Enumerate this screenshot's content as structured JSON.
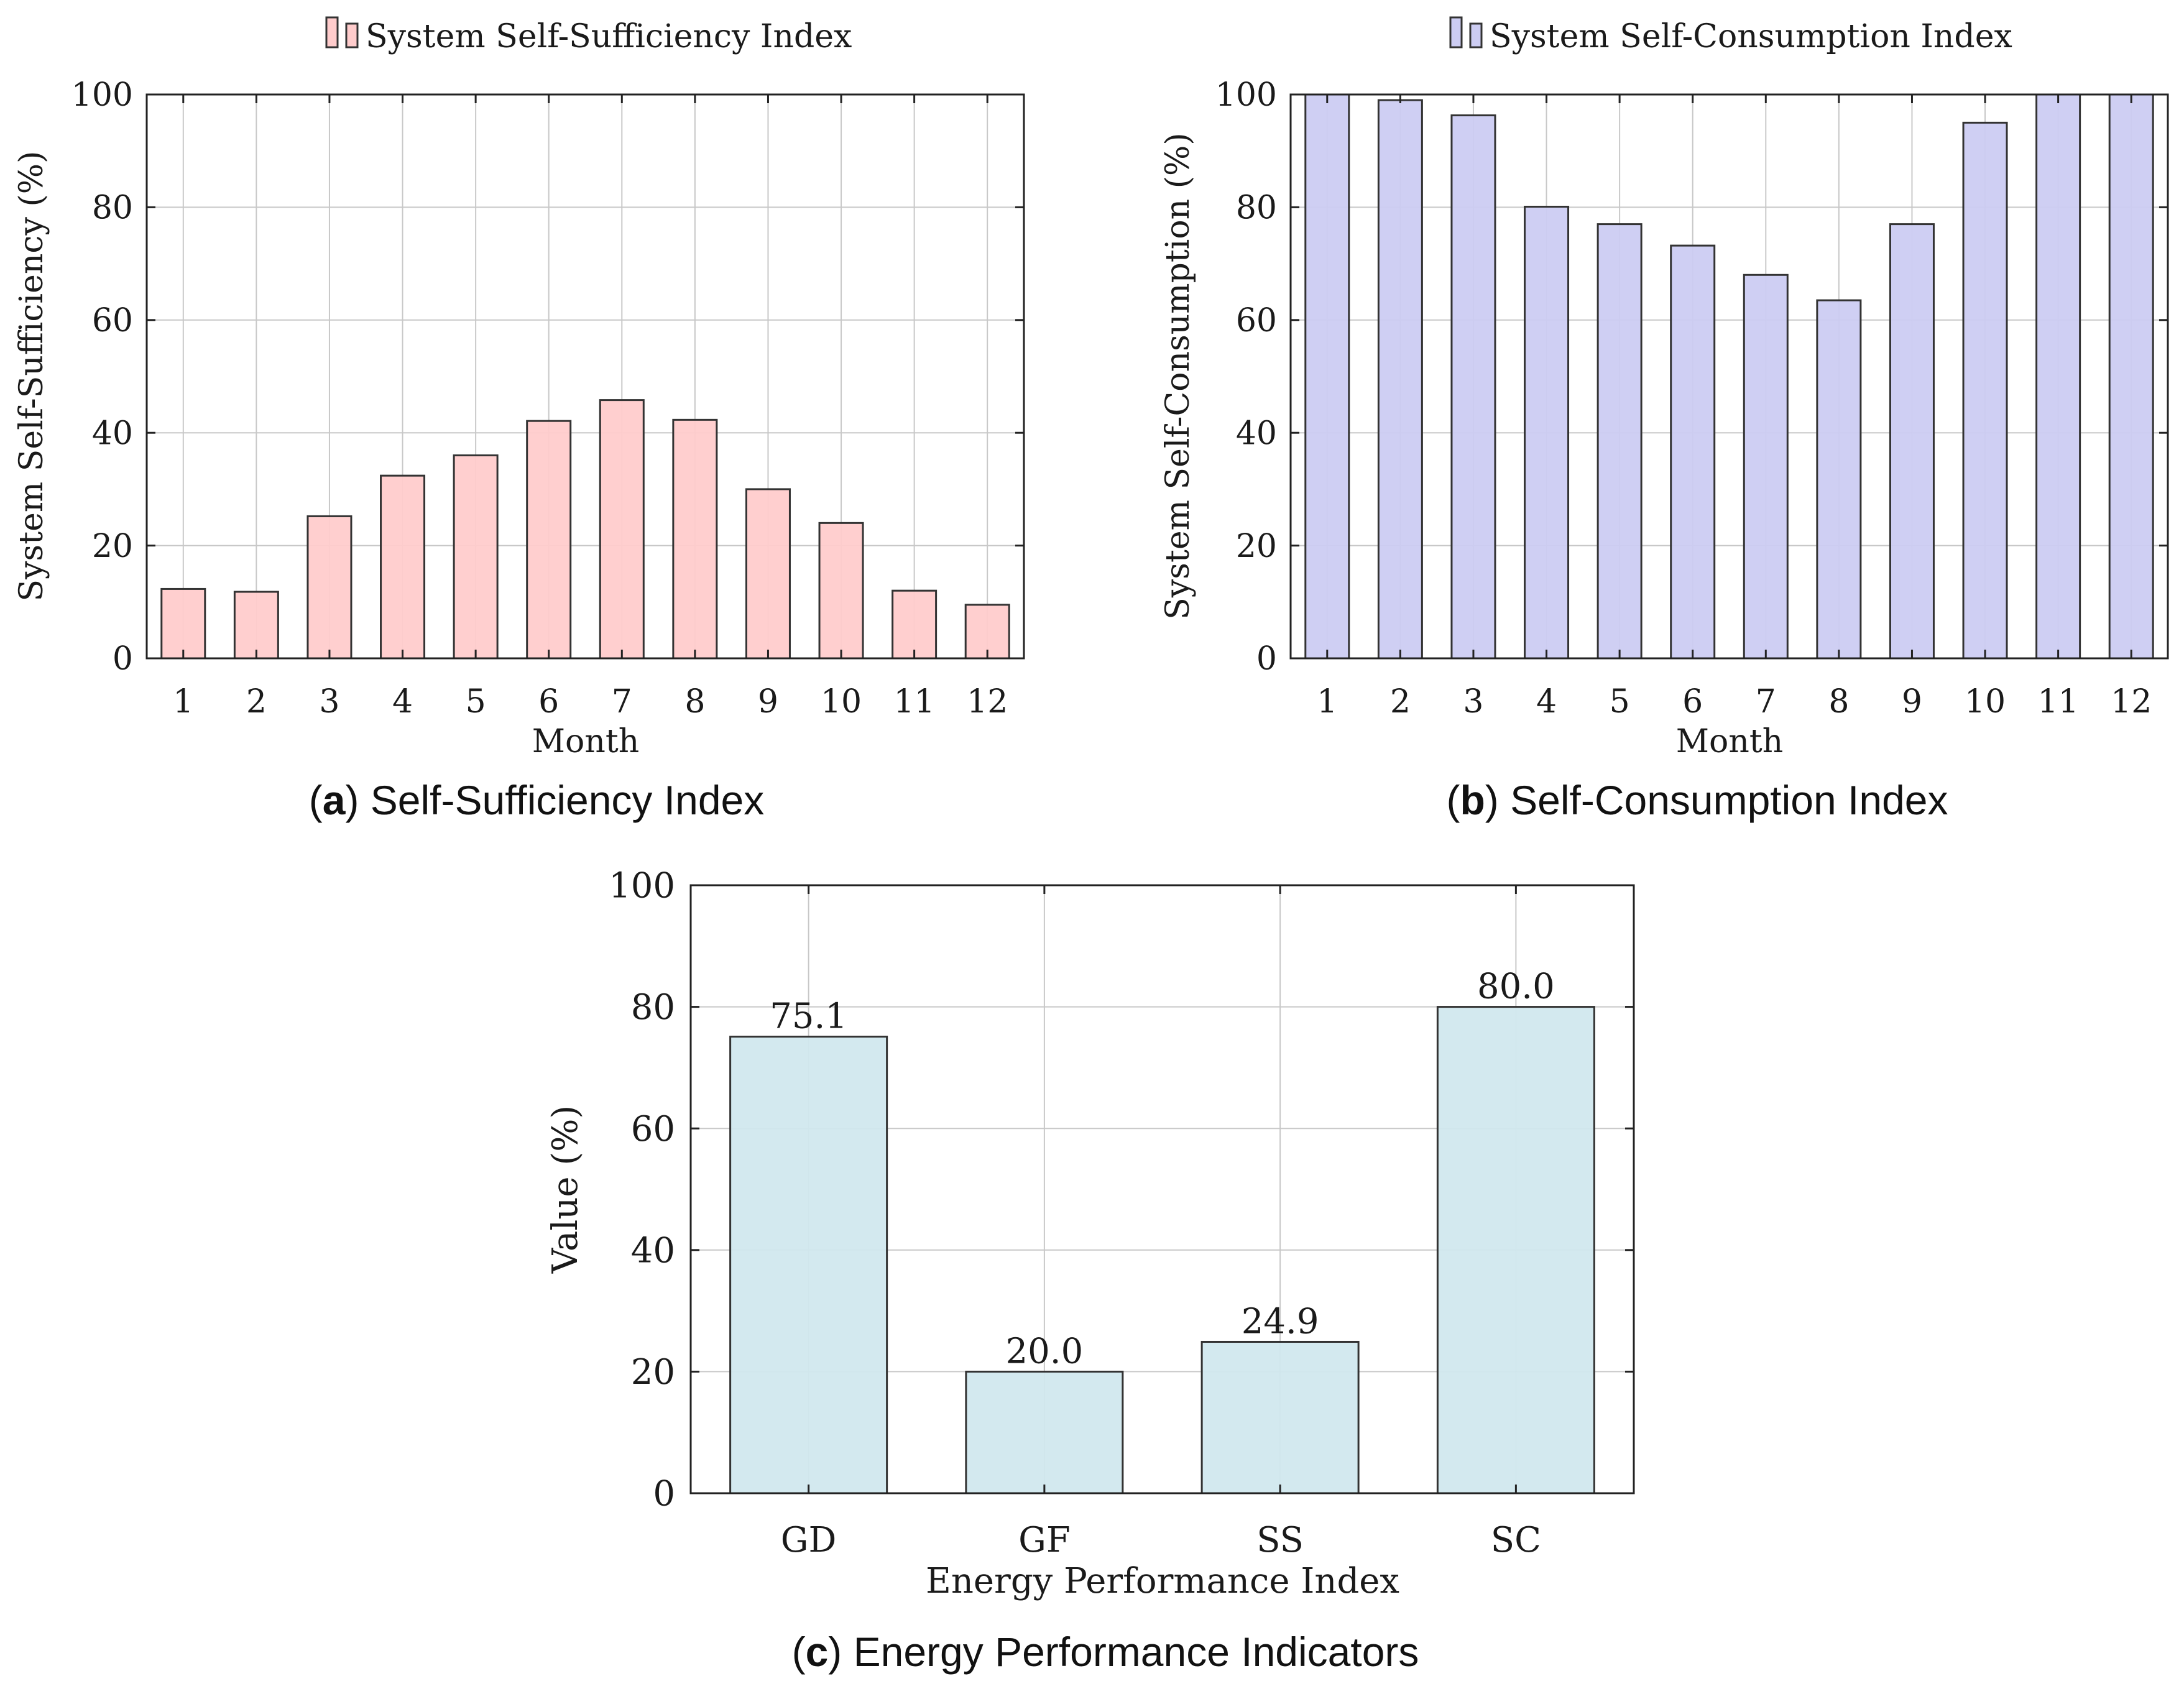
{
  "colors": {
    "ss_fill": "#ffcccc",
    "sc_fill": "#ccccf2",
    "ep_fill": "#d1e8ee",
    "bar_stroke": "#333333"
  },
  "chart_data": [
    {
      "id": "a",
      "type": "bar",
      "legend": "System Self-Sufficiency Index",
      "legend_position": "top-center",
      "categories": [
        "1",
        "2",
        "3",
        "4",
        "5",
        "6",
        "7",
        "8",
        "9",
        "10",
        "11",
        "12"
      ],
      "values": [
        12.3,
        11.8,
        25.2,
        32.4,
        36.0,
        42.1,
        45.8,
        42.3,
        30.0,
        24.0,
        12.0,
        9.5
      ],
      "xlabel": "Month",
      "ylabel": "System Self-Sufficiency (%)",
      "ylim": [
        0,
        100
      ],
      "yticks": [
        "0",
        "20",
        "40",
        "60",
        "80",
        "100"
      ],
      "grid": true,
      "caption_letter": "a",
      "caption_text": "Self-Sufficiency Index"
    },
    {
      "id": "b",
      "type": "bar",
      "legend": "System Self-Consumption Index",
      "legend_position": "top-center",
      "categories": [
        "1",
        "2",
        "3",
        "4",
        "5",
        "6",
        "7",
        "8",
        "9",
        "10",
        "11",
        "12"
      ],
      "values": [
        100,
        99,
        96.3,
        80.1,
        77.0,
        73.2,
        68.0,
        63.5,
        77.0,
        95.0,
        100,
        100
      ],
      "xlabel": "Month",
      "ylabel": "System Self-Consumption (%)",
      "ylim": [
        0,
        100
      ],
      "yticks": [
        "0",
        "20",
        "40",
        "60",
        "80",
        "100"
      ],
      "grid": true,
      "caption_letter": "b",
      "caption_text": "Self-Consumption Index"
    },
    {
      "id": "c",
      "type": "bar",
      "categories": [
        "GD",
        "GF",
        "SS",
        "SC"
      ],
      "values": [
        75.1,
        20.0,
        24.9,
        80.0
      ],
      "data_labels": [
        "75.1",
        "20.0",
        "24.9",
        "80.0"
      ],
      "xlabel": "Energy Performance Index",
      "ylabel": "Value (%)",
      "ylim": [
        0,
        100
      ],
      "yticks": [
        "0",
        "20",
        "40",
        "60",
        "80",
        "100"
      ],
      "grid": true,
      "caption_letter": "c",
      "caption_text": "Energy Performance Indicators"
    }
  ]
}
